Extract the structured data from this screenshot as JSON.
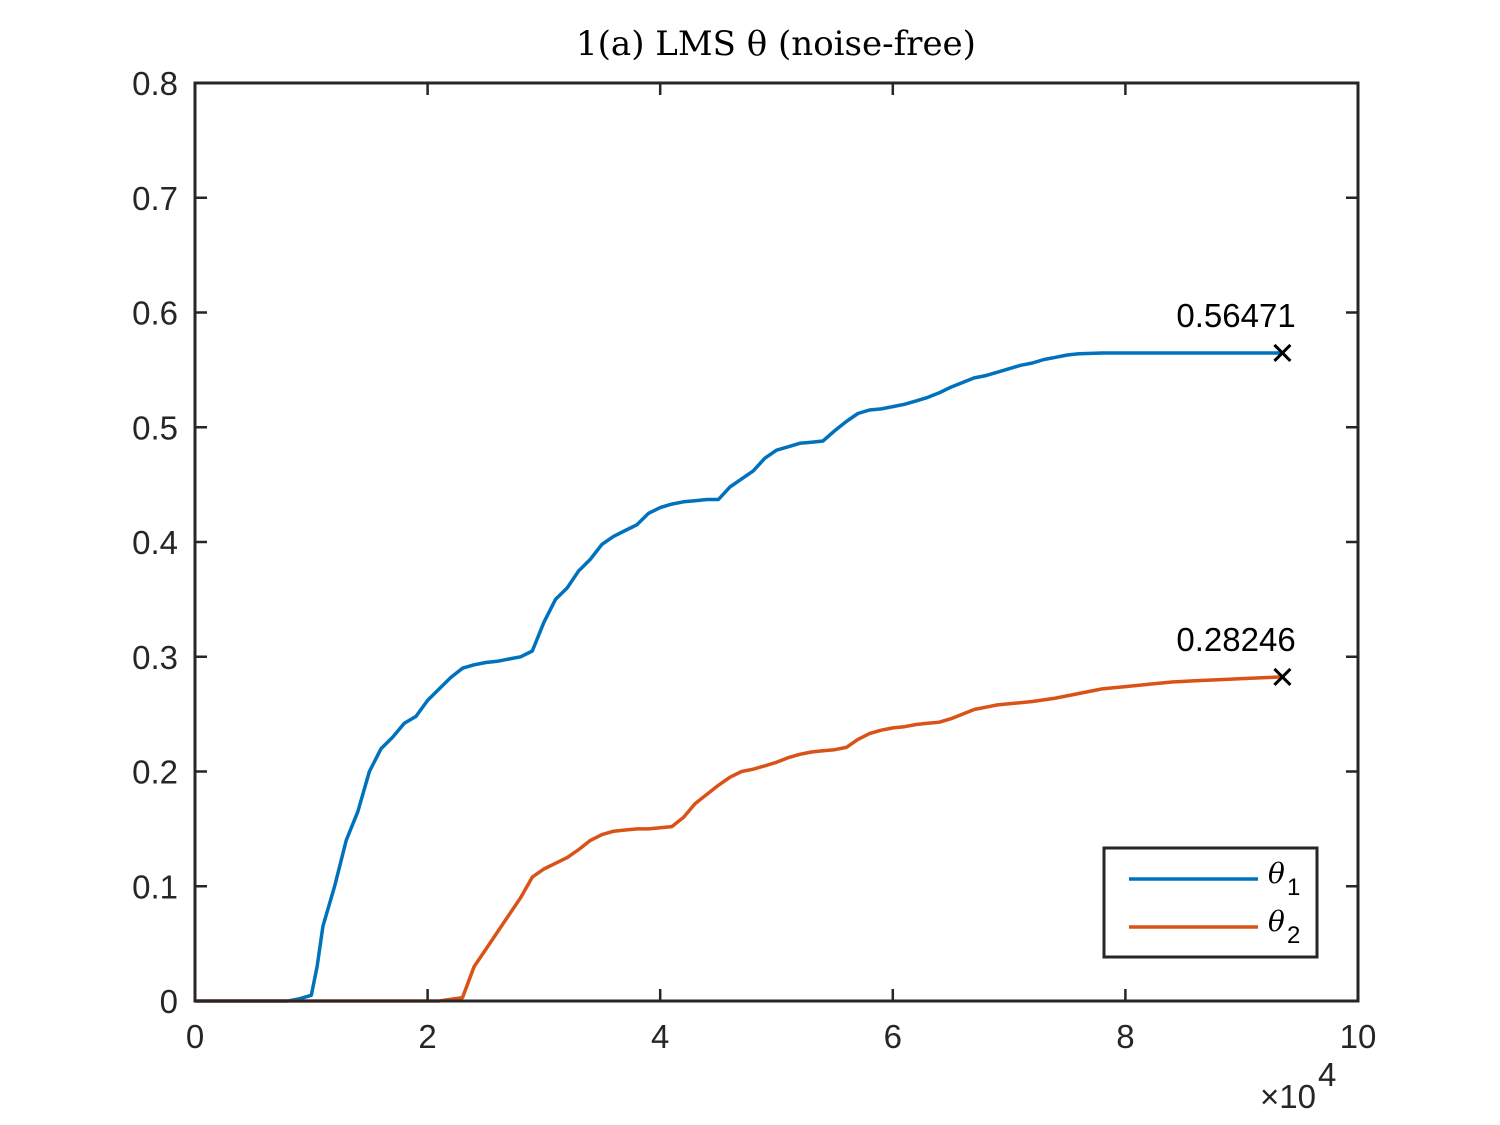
{
  "chart_data": {
    "type": "line",
    "title": "1(a) LMS θ (noise-free)",
    "xlabel": "",
    "ylabel": "",
    "xlim": [
      0,
      100000
    ],
    "ylim": [
      0,
      0.8
    ],
    "x_exponent_label": "×10",
    "x_exponent_power": "4",
    "xticks": [
      0,
      20000,
      40000,
      60000,
      80000,
      100000
    ],
    "xtick_labels": [
      "0",
      "2",
      "4",
      "6",
      "8",
      "10"
    ],
    "yticks": [
      0,
      0.1,
      0.2,
      0.3,
      0.4,
      0.5,
      0.6,
      0.7,
      0.8
    ],
    "ytick_labels": [
      "0",
      "0.1",
      "0.2",
      "0.3",
      "0.4",
      "0.5",
      "0.6",
      "0.7",
      "0.8"
    ],
    "grid": false,
    "legend_position": "bottom-right",
    "series": [
      {
        "name": "θ",
        "subscript": "1",
        "color": "#0072BD",
        "points": [
          [
            0,
            0
          ],
          [
            8000,
            0
          ],
          [
            9000,
            0.002
          ],
          [
            10000,
            0.005
          ],
          [
            10500,
            0.03
          ],
          [
            11000,
            0.065
          ],
          [
            12000,
            0.1
          ],
          [
            13000,
            0.14
          ],
          [
            14000,
            0.165
          ],
          [
            15000,
            0.2
          ],
          [
            16000,
            0.22
          ],
          [
            17000,
            0.23
          ],
          [
            18000,
            0.242
          ],
          [
            19000,
            0.248
          ],
          [
            20000,
            0.262
          ],
          [
            21000,
            0.272
          ],
          [
            22000,
            0.282
          ],
          [
            23000,
            0.29
          ],
          [
            24000,
            0.293
          ],
          [
            25000,
            0.295
          ],
          [
            26000,
            0.296
          ],
          [
            27000,
            0.298
          ],
          [
            28000,
            0.3
          ],
          [
            29000,
            0.305
          ],
          [
            30000,
            0.33
          ],
          [
            31000,
            0.35
          ],
          [
            32000,
            0.36
          ],
          [
            33000,
            0.375
          ],
          [
            34000,
            0.385
          ],
          [
            35000,
            0.398
          ],
          [
            36000,
            0.405
          ],
          [
            37000,
            0.41
          ],
          [
            38000,
            0.415
          ],
          [
            39000,
            0.425
          ],
          [
            40000,
            0.43
          ],
          [
            41000,
            0.433
          ],
          [
            42000,
            0.435
          ],
          [
            43000,
            0.436
          ],
          [
            44000,
            0.437
          ],
          [
            45000,
            0.437
          ],
          [
            46000,
            0.448
          ],
          [
            47000,
            0.455
          ],
          [
            48000,
            0.462
          ],
          [
            49000,
            0.473
          ],
          [
            50000,
            0.48
          ],
          [
            51000,
            0.483
          ],
          [
            52000,
            0.486
          ],
          [
            53000,
            0.487
          ],
          [
            54000,
            0.488
          ],
          [
            55000,
            0.497
          ],
          [
            56000,
            0.505
          ],
          [
            57000,
            0.512
          ],
          [
            58000,
            0.515
          ],
          [
            59000,
            0.516
          ],
          [
            60000,
            0.518
          ],
          [
            61000,
            0.52
          ],
          [
            62000,
            0.523
          ],
          [
            63000,
            0.526
          ],
          [
            64000,
            0.53
          ],
          [
            65000,
            0.535
          ],
          [
            66000,
            0.539
          ],
          [
            67000,
            0.543
          ],
          [
            68000,
            0.545
          ],
          [
            69000,
            0.548
          ],
          [
            70000,
            0.551
          ],
          [
            71000,
            0.554
          ],
          [
            72000,
            0.556
          ],
          [
            73000,
            0.559
          ],
          [
            74000,
            0.561
          ],
          [
            75000,
            0.563
          ],
          [
            76000,
            0.564
          ],
          [
            78000,
            0.5647
          ],
          [
            80000,
            0.5647
          ],
          [
            93500,
            0.56471
          ]
        ],
        "end_x": 93500,
        "end_value": 0.56471,
        "end_label": "0.56471"
      },
      {
        "name": "θ",
        "subscript": "2",
        "color": "#D95319",
        "points": [
          [
            0,
            0
          ],
          [
            21000,
            0
          ],
          [
            23000,
            0.003
          ],
          [
            24000,
            0.03
          ],
          [
            25000,
            0.045
          ],
          [
            26000,
            0.06
          ],
          [
            27000,
            0.075
          ],
          [
            28000,
            0.09
          ],
          [
            29000,
            0.108
          ],
          [
            30000,
            0.115
          ],
          [
            31000,
            0.12
          ],
          [
            32000,
            0.125
          ],
          [
            33000,
            0.132
          ],
          [
            34000,
            0.14
          ],
          [
            35000,
            0.145
          ],
          [
            36000,
            0.148
          ],
          [
            37000,
            0.149
          ],
          [
            38000,
            0.15
          ],
          [
            39000,
            0.15
          ],
          [
            40000,
            0.151
          ],
          [
            41000,
            0.152
          ],
          [
            42000,
            0.16
          ],
          [
            43000,
            0.172
          ],
          [
            44000,
            0.18
          ],
          [
            45000,
            0.188
          ],
          [
            46000,
            0.195
          ],
          [
            47000,
            0.2
          ],
          [
            48000,
            0.202
          ],
          [
            49000,
            0.205
          ],
          [
            50000,
            0.208
          ],
          [
            51000,
            0.212
          ],
          [
            52000,
            0.215
          ],
          [
            53000,
            0.217
          ],
          [
            54000,
            0.218
          ],
          [
            55000,
            0.219
          ],
          [
            56000,
            0.221
          ],
          [
            57000,
            0.228
          ],
          [
            58000,
            0.233
          ],
          [
            59000,
            0.236
          ],
          [
            60000,
            0.238
          ],
          [
            61000,
            0.239
          ],
          [
            62000,
            0.241
          ],
          [
            63000,
            0.242
          ],
          [
            64000,
            0.243
          ],
          [
            65000,
            0.246
          ],
          [
            66000,
            0.25
          ],
          [
            67000,
            0.254
          ],
          [
            68000,
            0.256
          ],
          [
            69000,
            0.258
          ],
          [
            70000,
            0.259
          ],
          [
            72000,
            0.261
          ],
          [
            74000,
            0.264
          ],
          [
            76000,
            0.268
          ],
          [
            78000,
            0.272
          ],
          [
            80000,
            0.274
          ],
          [
            82000,
            0.276
          ],
          [
            84000,
            0.278
          ],
          [
            86000,
            0.279
          ],
          [
            88000,
            0.28
          ],
          [
            90000,
            0.281
          ],
          [
            93500,
            0.28246
          ]
        ],
        "end_x": 93500,
        "end_value": 0.28246,
        "end_label": "0.28246"
      }
    ]
  }
}
